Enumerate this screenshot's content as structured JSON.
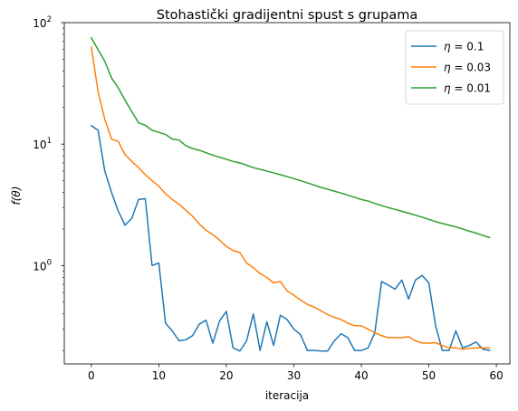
{
  "chart_data": {
    "type": "line",
    "title": "Stohastički gradijentni spust s grupama",
    "xlabel": "iteracija",
    "ylabel": "f(θ)",
    "yscale": "log",
    "xlim": [
      -4,
      62
    ],
    "ylim": [
      0.155,
      100
    ],
    "xticks": [
      "0",
      "10",
      "20",
      "30",
      "40",
      "50",
      "60"
    ],
    "yticks": [
      {
        "base": "10",
        "exp": "0"
      },
      {
        "base": "10",
        "exp": "1"
      },
      {
        "base": "10",
        "exp": "2"
      }
    ],
    "grid": false,
    "legend_position": "top-right",
    "x": [
      0,
      1,
      2,
      3,
      4,
      5,
      6,
      7,
      8,
      9,
      10,
      11,
      12,
      13,
      14,
      15,
      16,
      17,
      18,
      19,
      20,
      21,
      22,
      23,
      24,
      25,
      26,
      27,
      28,
      29,
      30,
      31,
      32,
      33,
      34,
      35,
      36,
      37,
      38,
      39,
      40,
      41,
      42,
      43,
      44,
      45,
      46,
      47,
      48,
      49,
      50,
      51,
      52,
      53,
      54,
      55,
      56,
      57,
      58,
      59
    ],
    "series": [
      {
        "name": "η = 0.1",
        "legend_prefix": "η",
        "legend_value": "0.1",
        "color": "#1f77b4",
        "values": [
          14.2,
          13.0,
          6.0,
          4.0,
          2.8,
          2.15,
          2.45,
          3.5,
          3.55,
          1.0,
          1.05,
          0.335,
          0.29,
          0.24,
          0.245,
          0.265,
          0.33,
          0.355,
          0.23,
          0.35,
          0.42,
          0.21,
          0.198,
          0.24,
          0.4,
          0.2,
          0.345,
          0.22,
          0.39,
          0.36,
          0.3,
          0.27,
          0.2,
          0.2,
          0.198,
          0.198,
          0.24,
          0.275,
          0.255,
          0.2,
          0.2,
          0.21,
          0.28,
          0.74,
          0.69,
          0.64,
          0.76,
          0.53,
          0.76,
          0.83,
          0.72,
          0.32,
          0.2,
          0.2,
          0.29,
          0.21,
          0.22,
          0.235,
          0.205,
          0.2
        ]
      },
      {
        "name": "η = 0.03",
        "legend_prefix": "η",
        "legend_value": "0.03",
        "color": "#ff7f0e",
        "values": [
          63,
          27,
          16,
          11,
          10.5,
          8.2,
          7.2,
          6.4,
          5.6,
          5.0,
          4.5,
          3.9,
          3.5,
          3.2,
          2.85,
          2.55,
          2.2,
          1.95,
          1.8,
          1.62,
          1.44,
          1.33,
          1.28,
          1.05,
          0.96,
          0.86,
          0.8,
          0.72,
          0.74,
          0.62,
          0.57,
          0.52,
          0.48,
          0.455,
          0.425,
          0.395,
          0.375,
          0.36,
          0.335,
          0.32,
          0.32,
          0.3,
          0.28,
          0.265,
          0.255,
          0.255,
          0.255,
          0.26,
          0.24,
          0.23,
          0.23,
          0.232,
          0.22,
          0.21,
          0.21,
          0.205,
          0.208,
          0.21,
          0.21,
          0.21
        ]
      },
      {
        "name": "η = 0.01",
        "legend_prefix": "η",
        "legend_value": "0.01",
        "color": "#2ca02c",
        "values": [
          75,
          60,
          48,
          35,
          29,
          23,
          18.5,
          15,
          14.3,
          13,
          12.5,
          12,
          11,
          10.8,
          9.7,
          9.2,
          8.9,
          8.5,
          8.1,
          7.8,
          7.5,
          7.2,
          7.0,
          6.7,
          6.4,
          6.2,
          6.0,
          5.8,
          5.6,
          5.4,
          5.2,
          5.0,
          4.8,
          4.6,
          4.4,
          4.25,
          4.1,
          3.95,
          3.8,
          3.65,
          3.5,
          3.4,
          3.25,
          3.12,
          3.0,
          2.9,
          2.8,
          2.7,
          2.6,
          2.5,
          2.4,
          2.3,
          2.22,
          2.15,
          2.08,
          2.0,
          1.92,
          1.85,
          1.77,
          1.7
        ]
      }
    ]
  }
}
